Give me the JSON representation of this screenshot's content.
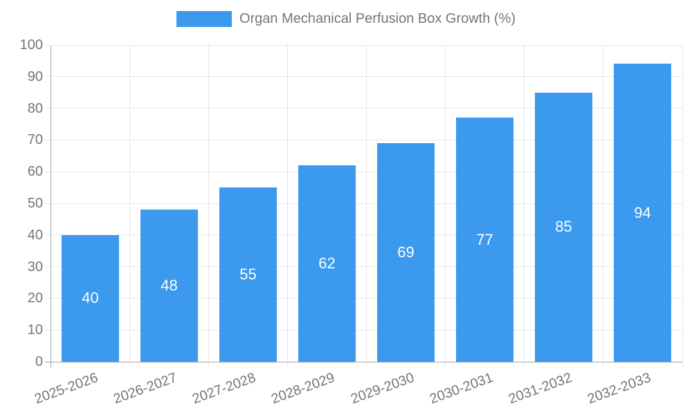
{
  "chart_data": {
    "type": "bar",
    "title": "Organ Mechanical Perfusion Box Growth (%)",
    "legend_position": "top",
    "categories": [
      "2025-2026",
      "2026-2027",
      "2027-2028",
      "2028-2029",
      "2029-2030",
      "2030-2031",
      "2031-2032",
      "2032-2033"
    ],
    "series": [
      {
        "name": "Organ Mechanical Perfusion Box Growth (%)",
        "values": [
          40,
          48,
          55,
          62,
          69,
          77,
          85,
          94
        ]
      }
    ],
    "value_labels": [
      "40",
      "48",
      "55",
      "62",
      "69",
      "77",
      "85",
      "94"
    ],
    "xlabel": "",
    "ylabel": "",
    "ylim": [
      0,
      100
    ],
    "ytick_step": 10,
    "ytick_labels": [
      "0",
      "10",
      "20",
      "30",
      "40",
      "50",
      "60",
      "70",
      "80",
      "90",
      "100"
    ],
    "grid": true,
    "x_label_rotation_deg": -20,
    "colors": {
      "bar": "#3b99ee",
      "value_label": "#ffffff",
      "axis_text": "#757575",
      "gridline": "#e5e5e5",
      "axis_line": "#a5a5a5",
      "background": "#ffffff"
    }
  }
}
